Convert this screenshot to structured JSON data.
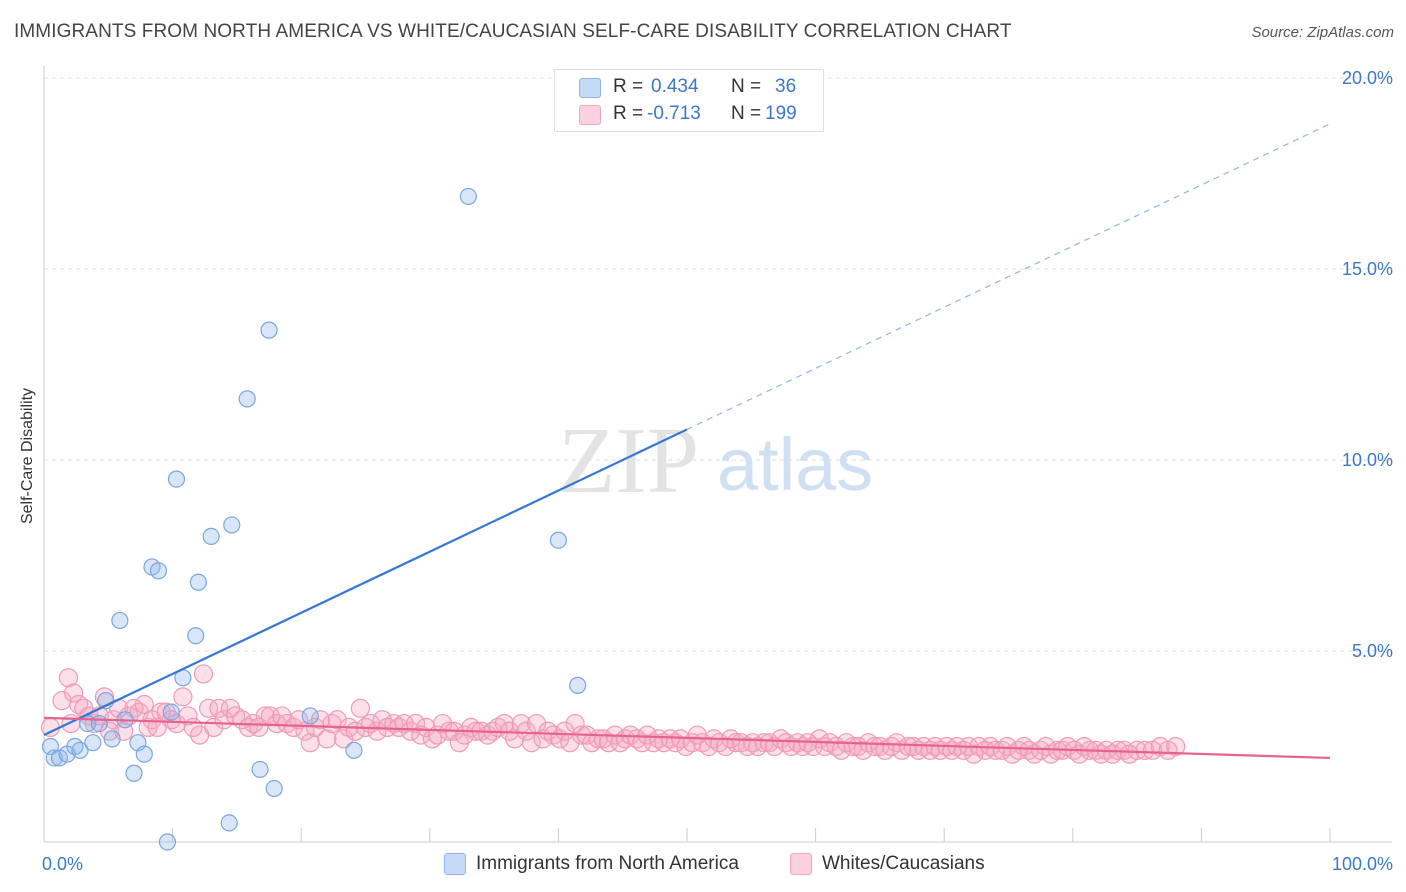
{
  "title": "IMMIGRANTS FROM NORTH AMERICA VS WHITE/CAUCASIAN SELF-CARE DISABILITY CORRELATION CHART",
  "source": "Source: ZipAtlas.com",
  "watermark": {
    "zip": "ZIP",
    "atlas": "atlas"
  },
  "colors": {
    "blue": "#8fb6e8",
    "blue_line": "#3478d4",
    "pink": "#f4a6c0",
    "pink_line": "#e8628f",
    "tick": "#3b78c8"
  },
  "legend": {
    "rows": [
      {
        "r_label": "R =",
        "r_value": "0.434",
        "n_label": "N =",
        "n_value": "36"
      },
      {
        "r_label": "R =",
        "r_value": "-0.713",
        "n_label": "N =",
        "n_value": "199"
      }
    ]
  },
  "bottom_legend": {
    "series1": "Immigrants from North America",
    "series2": "Whites/Caucasians"
  },
  "chart_data": {
    "type": "scatter",
    "title": "IMMIGRANTS FROM NORTH AMERICA VS WHITE/CAUCASIAN SELF-CARE DISABILITY CORRELATION CHART",
    "xlabel": "",
    "ylabel": "Self-Care Disability",
    "xlim": [
      0,
      100
    ],
    "ylim": [
      0,
      20
    ],
    "x_tick_labels": [
      "0.0%",
      "100.0%"
    ],
    "y_ticks": [
      5,
      10,
      15,
      20
    ],
    "y_tick_labels": [
      "5.0%",
      "10.0%",
      "15.0%",
      "20.0%"
    ],
    "grid": true,
    "series": [
      {
        "name": "Immigrants from North America",
        "color": "#8fb6e8",
        "R": 0.434,
        "N": 36,
        "trend": {
          "x0": 0,
          "y0": 2.8,
          "x1": 100,
          "y1": 18.8,
          "solid_until": 50
        },
        "points": [
          [
            0.5,
            2.5
          ],
          [
            0.8,
            2.2
          ],
          [
            1.2,
            2.2
          ],
          [
            1.8,
            2.3
          ],
          [
            2.4,
            2.5
          ],
          [
            2.8,
            2.4
          ],
          [
            3.4,
            3.1
          ],
          [
            3.8,
            2.6
          ],
          [
            4.3,
            3.1
          ],
          [
            4.8,
            3.7
          ],
          [
            5.3,
            2.7
          ],
          [
            5.9,
            5.8
          ],
          [
            6.3,
            3.2
          ],
          [
            7.0,
            1.8
          ],
          [
            7.3,
            2.6
          ],
          [
            7.8,
            2.3
          ],
          [
            8.4,
            7.2
          ],
          [
            8.9,
            7.1
          ],
          [
            9.6,
            0.0
          ],
          [
            9.9,
            3.4
          ],
          [
            10.3,
            9.5
          ],
          [
            10.8,
            4.3
          ],
          [
            11.8,
            5.4
          ],
          [
            12.0,
            6.8
          ],
          [
            13.0,
            8.0
          ],
          [
            14.4,
            0.5
          ],
          [
            14.6,
            8.3
          ],
          [
            15.8,
            11.6
          ],
          [
            16.8,
            1.9
          ],
          [
            17.5,
            13.4
          ],
          [
            17.9,
            1.4
          ],
          [
            20.7,
            3.3
          ],
          [
            24.1,
            2.4
          ],
          [
            33.0,
            16.9
          ],
          [
            40.0,
            7.9
          ],
          [
            41.5,
            4.1
          ]
        ]
      },
      {
        "name": "Whites/Caucasians",
        "color": "#f4a6c0",
        "R": -0.713,
        "N": 199,
        "trend": {
          "x0": 0,
          "y0": 3.25,
          "x1": 100,
          "y1": 2.2
        },
        "points": [
          [
            0.5,
            3.0
          ],
          [
            1.4,
            3.7
          ],
          [
            1.9,
            4.3
          ],
          [
            2.1,
            3.1
          ],
          [
            2.3,
            3.9
          ],
          [
            2.7,
            3.6
          ],
          [
            3.1,
            3.5
          ],
          [
            3.5,
            3.3
          ],
          [
            3.9,
            3.1
          ],
          [
            4.3,
            3.3
          ],
          [
            4.7,
            3.8
          ],
          [
            5.1,
            2.9
          ],
          [
            5.4,
            3.2
          ],
          [
            5.8,
            3.5
          ],
          [
            6.2,
            2.9
          ],
          [
            6.6,
            3.3
          ],
          [
            7.0,
            3.5
          ],
          [
            7.4,
            3.4
          ],
          [
            7.8,
            3.6
          ],
          [
            8.1,
            3.0
          ],
          [
            8.4,
            3.2
          ],
          [
            8.8,
            3.0
          ],
          [
            9.1,
            3.4
          ],
          [
            9.5,
            3.4
          ],
          [
            9.9,
            3.2
          ],
          [
            10.3,
            3.1
          ],
          [
            10.8,
            3.8
          ],
          [
            11.2,
            3.3
          ],
          [
            11.6,
            3.0
          ],
          [
            12.1,
            2.8
          ],
          [
            12.4,
            4.4
          ],
          [
            12.8,
            3.5
          ],
          [
            13.2,
            3.0
          ],
          [
            13.6,
            3.5
          ],
          [
            14.0,
            3.2
          ],
          [
            14.5,
            3.5
          ],
          [
            14.9,
            3.3
          ],
          [
            15.4,
            3.2
          ],
          [
            15.9,
            3.0
          ],
          [
            16.3,
            3.1
          ],
          [
            16.7,
            3.0
          ],
          [
            17.2,
            3.3
          ],
          [
            17.6,
            3.3
          ],
          [
            18.1,
            3.1
          ],
          [
            18.5,
            3.3
          ],
          [
            18.9,
            3.1
          ],
          [
            19.4,
            3.0
          ],
          [
            19.8,
            3.2
          ],
          [
            20.3,
            2.9
          ],
          [
            20.7,
            2.6
          ],
          [
            21.1,
            3.0
          ],
          [
            21.5,
            3.2
          ],
          [
            22.0,
            2.7
          ],
          [
            22.4,
            3.1
          ],
          [
            22.8,
            3.2
          ],
          [
            23.3,
            2.7
          ],
          [
            23.7,
            3.0
          ],
          [
            24.2,
            2.9
          ],
          [
            24.6,
            3.5
          ],
          [
            25.0,
            3.0
          ],
          [
            25.4,
            3.1
          ],
          [
            25.9,
            2.9
          ],
          [
            26.3,
            3.2
          ],
          [
            26.7,
            3.0
          ],
          [
            27.2,
            3.1
          ],
          [
            27.6,
            3.0
          ],
          [
            28.0,
            3.1
          ],
          [
            28.5,
            2.9
          ],
          [
            28.9,
            3.1
          ],
          [
            29.3,
            2.8
          ],
          [
            29.7,
            3.0
          ],
          [
            30.2,
            2.7
          ],
          [
            30.6,
            2.8
          ],
          [
            31.0,
            3.1
          ],
          [
            31.5,
            2.9
          ],
          [
            31.9,
            2.9
          ],
          [
            32.3,
            2.6
          ],
          [
            32.7,
            2.8
          ],
          [
            33.2,
            3.0
          ],
          [
            33.6,
            2.9
          ],
          [
            34.0,
            2.9
          ],
          [
            34.5,
            2.8
          ],
          [
            34.9,
            2.9
          ],
          [
            35.3,
            3.0
          ],
          [
            35.8,
            3.1
          ],
          [
            36.2,
            2.9
          ],
          [
            36.6,
            2.7
          ],
          [
            37.1,
            3.1
          ],
          [
            37.5,
            2.9
          ],
          [
            37.9,
            2.6
          ],
          [
            38.3,
            3.1
          ],
          [
            38.8,
            2.7
          ],
          [
            39.2,
            2.9
          ],
          [
            39.6,
            2.8
          ],
          [
            40.1,
            2.7
          ],
          [
            40.5,
            2.9
          ],
          [
            40.9,
            2.6
          ],
          [
            41.3,
            3.1
          ],
          [
            41.8,
            2.8
          ],
          [
            42.2,
            2.8
          ],
          [
            42.6,
            2.6
          ],
          [
            43.1,
            2.7
          ],
          [
            43.5,
            2.7
          ],
          [
            43.9,
            2.6
          ],
          [
            44.4,
            2.8
          ],
          [
            44.8,
            2.6
          ],
          [
            45.2,
            2.7
          ],
          [
            45.6,
            2.8
          ],
          [
            46.1,
            2.7
          ],
          [
            46.5,
            2.6
          ],
          [
            46.9,
            2.8
          ],
          [
            47.4,
            2.6
          ],
          [
            47.8,
            2.7
          ],
          [
            48.2,
            2.6
          ],
          [
            48.7,
            2.7
          ],
          [
            49.1,
            2.6
          ],
          [
            49.5,
            2.7
          ],
          [
            49.9,
            2.5
          ],
          [
            50.4,
            2.6
          ],
          [
            50.8,
            2.8
          ],
          [
            51.2,
            2.6
          ],
          [
            51.7,
            2.5
          ],
          [
            52.1,
            2.7
          ],
          [
            52.5,
            2.6
          ],
          [
            53.0,
            2.5
          ],
          [
            53.4,
            2.7
          ],
          [
            53.8,
            2.6
          ],
          [
            54.2,
            2.6
          ],
          [
            54.7,
            2.5
          ],
          [
            55.1,
            2.6
          ],
          [
            55.5,
            2.5
          ],
          [
            56.0,
            2.6
          ],
          [
            56.4,
            2.6
          ],
          [
            56.8,
            2.5
          ],
          [
            57.3,
            2.7
          ],
          [
            57.7,
            2.6
          ],
          [
            58.1,
            2.5
          ],
          [
            58.6,
            2.6
          ],
          [
            59.0,
            2.5
          ],
          [
            59.4,
            2.6
          ],
          [
            59.8,
            2.5
          ],
          [
            60.3,
            2.7
          ],
          [
            60.7,
            2.5
          ],
          [
            61.1,
            2.6
          ],
          [
            61.6,
            2.5
          ],
          [
            62.0,
            2.4
          ],
          [
            62.4,
            2.6
          ],
          [
            62.9,
            2.5
          ],
          [
            63.3,
            2.5
          ],
          [
            63.7,
            2.4
          ],
          [
            64.1,
            2.6
          ],
          [
            64.6,
            2.5
          ],
          [
            65.0,
            2.5
          ],
          [
            65.4,
            2.4
          ],
          [
            65.9,
            2.5
          ],
          [
            66.3,
            2.6
          ],
          [
            66.7,
            2.4
          ],
          [
            67.2,
            2.5
          ],
          [
            67.6,
            2.5
          ],
          [
            68.0,
            2.4
          ],
          [
            68.4,
            2.5
          ],
          [
            68.9,
            2.4
          ],
          [
            69.3,
            2.5
          ],
          [
            69.7,
            2.4
          ],
          [
            70.2,
            2.5
          ],
          [
            70.6,
            2.4
          ],
          [
            71.0,
            2.5
          ],
          [
            71.5,
            2.4
          ],
          [
            71.9,
            2.5
          ],
          [
            72.3,
            2.3
          ],
          [
            72.7,
            2.5
          ],
          [
            73.2,
            2.4
          ],
          [
            73.6,
            2.5
          ],
          [
            74.0,
            2.4
          ],
          [
            74.5,
            2.4
          ],
          [
            74.9,
            2.5
          ],
          [
            75.3,
            2.3
          ],
          [
            75.8,
            2.4
          ],
          [
            76.2,
            2.5
          ],
          [
            76.6,
            2.4
          ],
          [
            77.0,
            2.3
          ],
          [
            77.5,
            2.4
          ],
          [
            77.9,
            2.5
          ],
          [
            78.3,
            2.3
          ],
          [
            78.8,
            2.4
          ],
          [
            79.2,
            2.4
          ],
          [
            79.6,
            2.5
          ],
          [
            80.1,
            2.4
          ],
          [
            80.5,
            2.3
          ],
          [
            80.9,
            2.5
          ],
          [
            81.3,
            2.4
          ],
          [
            81.8,
            2.4
          ],
          [
            82.2,
            2.3
          ],
          [
            82.6,
            2.4
          ],
          [
            83.1,
            2.3
          ],
          [
            83.5,
            2.4
          ],
          [
            84.0,
            2.4
          ],
          [
            84.4,
            2.3
          ],
          [
            85.0,
            2.4
          ],
          [
            85.6,
            2.4
          ],
          [
            86.2,
            2.4
          ],
          [
            86.8,
            2.5
          ],
          [
            87.4,
            2.4
          ],
          [
            88.0,
            2.5
          ]
        ]
      }
    ]
  }
}
